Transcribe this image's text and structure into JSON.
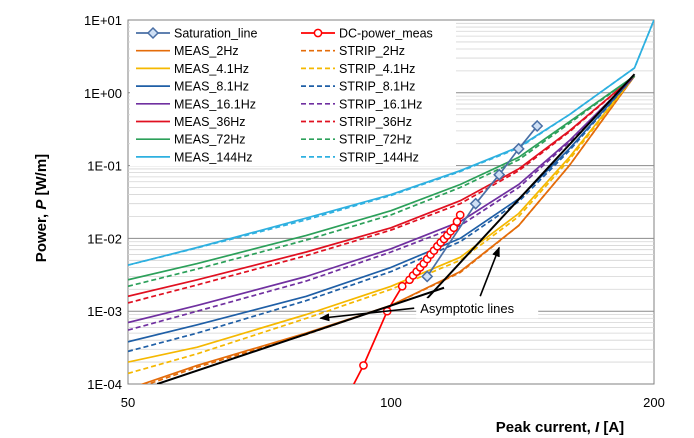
{
  "chart_data": {
    "type": "line",
    "xscale": "log",
    "yscale": "log",
    "xlim": [
      50,
      200
    ],
    "ylim": [
      0.0001,
      10
    ],
    "xticks": [
      50,
      100,
      200
    ],
    "xtick_labels": [
      "50",
      "100",
      "200"
    ],
    "ytick_labels": [
      "1E-04",
      "1E-03",
      "1E-02",
      "1E-01",
      "1E+00",
      "1E+01"
    ],
    "xlabel": "Peak  current, I  [A]",
    "ylabel": "Power, P  [W/m]",
    "grid": "horizontal major and minor",
    "legend_position": "top-left",
    "series": [
      {
        "name": "Saturation_line",
        "color": "#4a6fa5",
        "style": "solid",
        "marker": "diamond",
        "x": [
          110,
          125,
          133,
          140,
          147
        ],
        "y": [
          0.003,
          0.03,
          0.075,
          0.17,
          0.35
        ]
      },
      {
        "name": "DC-power_meas",
        "color": "#ff0000",
        "style": "solid",
        "marker": "circle",
        "x": [
          88,
          93,
          99,
          103,
          105,
          106,
          107,
          108,
          109,
          110,
          111,
          112,
          113,
          114,
          115,
          116,
          117,
          118,
          119,
          120
        ],
        "y": [
          5e-05,
          0.00018,
          0.001,
          0.0022,
          0.0027,
          0.0031,
          0.0035,
          0.004,
          0.0045,
          0.0052,
          0.006,
          0.0068,
          0.0078,
          0.0088,
          0.0098,
          0.011,
          0.0125,
          0.014,
          0.017,
          0.021
        ]
      },
      {
        "name": "MEAS_2Hz",
        "color": "#e46c0a",
        "style": "solid",
        "x": [
          50,
          60,
          80,
          100,
          120,
          140,
          160,
          190
        ],
        "y": [
          8.5e-05,
          0.00018,
          0.0005,
          0.0012,
          0.0035,
          0.015,
          0.1,
          1.7
        ]
      },
      {
        "name": "STRIP_2Hz",
        "color": "#e46c0a",
        "style": "dashed",
        "x": [
          50,
          60,
          80,
          100,
          120,
          140,
          160,
          190
        ],
        "y": [
          8e-05,
          0.00017,
          0.00048,
          0.0012,
          0.0034,
          0.015,
          0.1,
          1.7
        ]
      },
      {
        "name": "MEAS_4.1Hz",
        "color": "#f5b800",
        "style": "solid",
        "x": [
          50,
          60,
          80,
          100,
          120,
          140,
          160,
          190
        ],
        "y": [
          0.0002,
          0.00032,
          0.0009,
          0.0022,
          0.0055,
          0.022,
          0.13,
          1.7
        ]
      },
      {
        "name": "STRIP_4.1Hz",
        "color": "#f5b800",
        "style": "dashed",
        "x": [
          50,
          60,
          80,
          100,
          120,
          140,
          160,
          190
        ],
        "y": [
          0.00014,
          0.00026,
          0.0008,
          0.002,
          0.005,
          0.02,
          0.12,
          1.7
        ]
      },
      {
        "name": "MEAS_8.1Hz",
        "color": "#1f5fa6",
        "style": "solid",
        "x": [
          50,
          60,
          80,
          100,
          120,
          140,
          160,
          190
        ],
        "y": [
          0.00038,
          0.00065,
          0.0016,
          0.004,
          0.01,
          0.035,
          0.17,
          1.7
        ]
      },
      {
        "name": "STRIP_8.1Hz",
        "color": "#1f5fa6",
        "style": "dashed",
        "x": [
          50,
          60,
          80,
          100,
          120,
          140,
          160,
          190
        ],
        "y": [
          0.00028,
          0.0005,
          0.0014,
          0.0035,
          0.009,
          0.032,
          0.16,
          1.7
        ]
      },
      {
        "name": "MEAS_16.1Hz",
        "color": "#7030a0",
        "style": "solid",
        "x": [
          50,
          60,
          80,
          100,
          120,
          140,
          160,
          190
        ],
        "y": [
          0.0007,
          0.0012,
          0.003,
          0.0072,
          0.017,
          0.055,
          0.22,
          1.7
        ]
      },
      {
        "name": "STRIP_16.1Hz",
        "color": "#7030a0",
        "style": "dashed",
        "x": [
          50,
          60,
          80,
          100,
          120,
          140,
          160,
          190
        ],
        "y": [
          0.00055,
          0.001,
          0.0026,
          0.0065,
          0.015,
          0.05,
          0.21,
          1.7
        ]
      },
      {
        "name": "MEAS_36Hz",
        "color": "#e01020",
        "style": "solid",
        "x": [
          50,
          60,
          80,
          100,
          120,
          140,
          160,
          190
        ],
        "y": [
          0.0016,
          0.0027,
          0.0065,
          0.014,
          0.033,
          0.09,
          0.3,
          1.7
        ]
      },
      {
        "name": "STRIP_36Hz",
        "color": "#e01020",
        "style": "dashed",
        "x": [
          50,
          60,
          80,
          100,
          120,
          140,
          160,
          190
        ],
        "y": [
          0.0013,
          0.0023,
          0.0058,
          0.013,
          0.03,
          0.085,
          0.29,
          1.7
        ]
      },
      {
        "name": "MEAS_72Hz",
        "color": "#2ca05a",
        "style": "solid",
        "x": [
          50,
          60,
          80,
          100,
          120,
          140,
          160,
          190
        ],
        "y": [
          0.0027,
          0.0045,
          0.011,
          0.024,
          0.055,
          0.13,
          0.4,
          1.7
        ]
      },
      {
        "name": "STRIP_72Hz",
        "color": "#2ca05a",
        "style": "dashed",
        "x": [
          50,
          60,
          80,
          100,
          120,
          140,
          160,
          190
        ],
        "y": [
          0.0022,
          0.0038,
          0.0095,
          0.021,
          0.05,
          0.12,
          0.38,
          1.7
        ]
      },
      {
        "name": "MEAS_144Hz",
        "color": "#2eb0e0",
        "style": "solid",
        "x": [
          50,
          60,
          80,
          100,
          120,
          140,
          160,
          190,
          200
        ],
        "y": [
          0.0043,
          0.0075,
          0.019,
          0.04,
          0.085,
          0.18,
          0.5,
          2.2,
          10
        ]
      },
      {
        "name": "STRIP_144Hz",
        "color": "#2eb0e0",
        "style": "dashed",
        "x": [
          50,
          60,
          80,
          100,
          120,
          140,
          160,
          190,
          200
        ],
        "y": [
          0.0043,
          0.0074,
          0.018,
          0.039,
          0.083,
          0.175,
          0.5,
          2.2,
          10
        ]
      }
    ],
    "asymptotes": [
      {
        "x": [
          54,
          115
        ],
        "y": [
          0.0001,
          0.0021
        ]
      },
      {
        "x": [
          110,
          190
        ],
        "y": [
          0.0015,
          1.8
        ]
      }
    ],
    "annotation": {
      "text": "Asymptotic lines",
      "label_at": {
        "x": 108,
        "y": 0.0011
      },
      "arrows_to": [
        {
          "x": 83,
          "y": 0.0008
        },
        {
          "x": 133,
          "y": 0.0075
        }
      ]
    }
  }
}
